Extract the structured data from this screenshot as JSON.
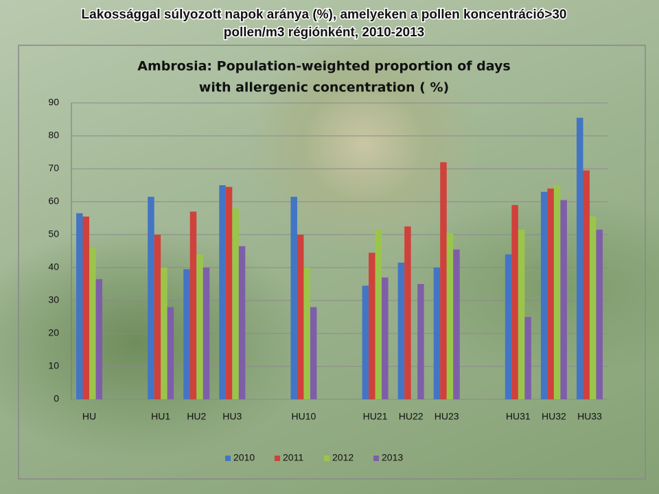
{
  "slide_title": [
    "Lakossággal súlyozott napok aránya (%), amelyeken a pollen koncentráció>30",
    "pollen/m3 régiónként, 2010-2013"
  ],
  "chart_data": {
    "type": "bar",
    "title": [
      "Ambrosia:  Population-weighted  proportion of days",
      "with allergenic  concentration  ( %)"
    ],
    "categories": [
      "HU",
      null,
      "HU1",
      "HU2",
      "HU3",
      null,
      "HU10",
      null,
      "HU21",
      "HU22",
      "HU23",
      null,
      "HU31",
      "HU32",
      "HU33"
    ],
    "series": [
      {
        "name": "2010",
        "color": "#4375c5",
        "values": [
          56.5,
          null,
          61.5,
          39.5,
          65,
          null,
          61.5,
          null,
          34.5,
          41.5,
          40,
          null,
          44,
          63,
          85.5
        ]
      },
      {
        "name": "2011",
        "color": "#d0413c",
        "values": [
          55.5,
          null,
          50,
          57,
          64.5,
          null,
          50,
          null,
          44.5,
          52.5,
          72,
          null,
          59,
          64,
          69.5
        ]
      },
      {
        "name": "2012",
        "color": "#9bc54a",
        "values": [
          46,
          null,
          40,
          44,
          58,
          null,
          40,
          null,
          51.5,
          null,
          50.5,
          null,
          51.5,
          65,
          55.5
        ]
      },
      {
        "name": "2013",
        "color": "#7e5ea9",
        "values": [
          36.5,
          null,
          28,
          40,
          46.5,
          null,
          28,
          null,
          37,
          35,
          45.5,
          null,
          25,
          60.5,
          51.5
        ]
      }
    ],
    "ylim": [
      0,
      90
    ],
    "yticks": [
      0,
      10,
      20,
      30,
      40,
      50,
      60,
      70,
      80,
      90
    ],
    "grid": true,
    "legend": "bottom"
  }
}
